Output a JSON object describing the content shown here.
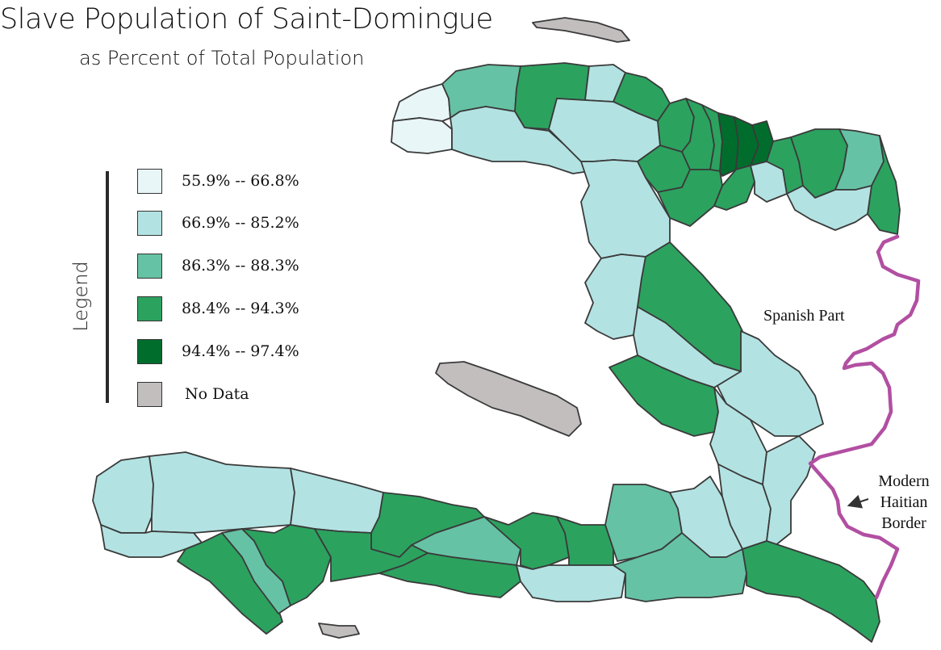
{
  "title": "Slave Population of Saint-Domingue",
  "subtitle": "as Percent of Total Population",
  "legend": {
    "title": "Legend",
    "items": [
      {
        "label": "55.9% -- 66.8%",
        "color": "#e8f6f8"
      },
      {
        "label": "66.9% -- 85.2%",
        "color": "#b3e2e2"
      },
      {
        "label": "86.3% -- 88.3%",
        "color": "#66c2a4"
      },
      {
        "label": "88.4% -- 94.3%",
        "color": "#2ca25f"
      },
      {
        "label": "94.4% -- 97.4%",
        "color": "#006d2c"
      },
      {
        "label": "No Data",
        "color": "#c2bebe"
      }
    ]
  },
  "labels": {
    "spanish_part": "Spanish Part",
    "modern_border": [
      "Modern",
      "Haitian",
      "Border"
    ]
  },
  "colors": {
    "border_line": "#b24fa2",
    "outline": "#3a3a3a"
  }
}
